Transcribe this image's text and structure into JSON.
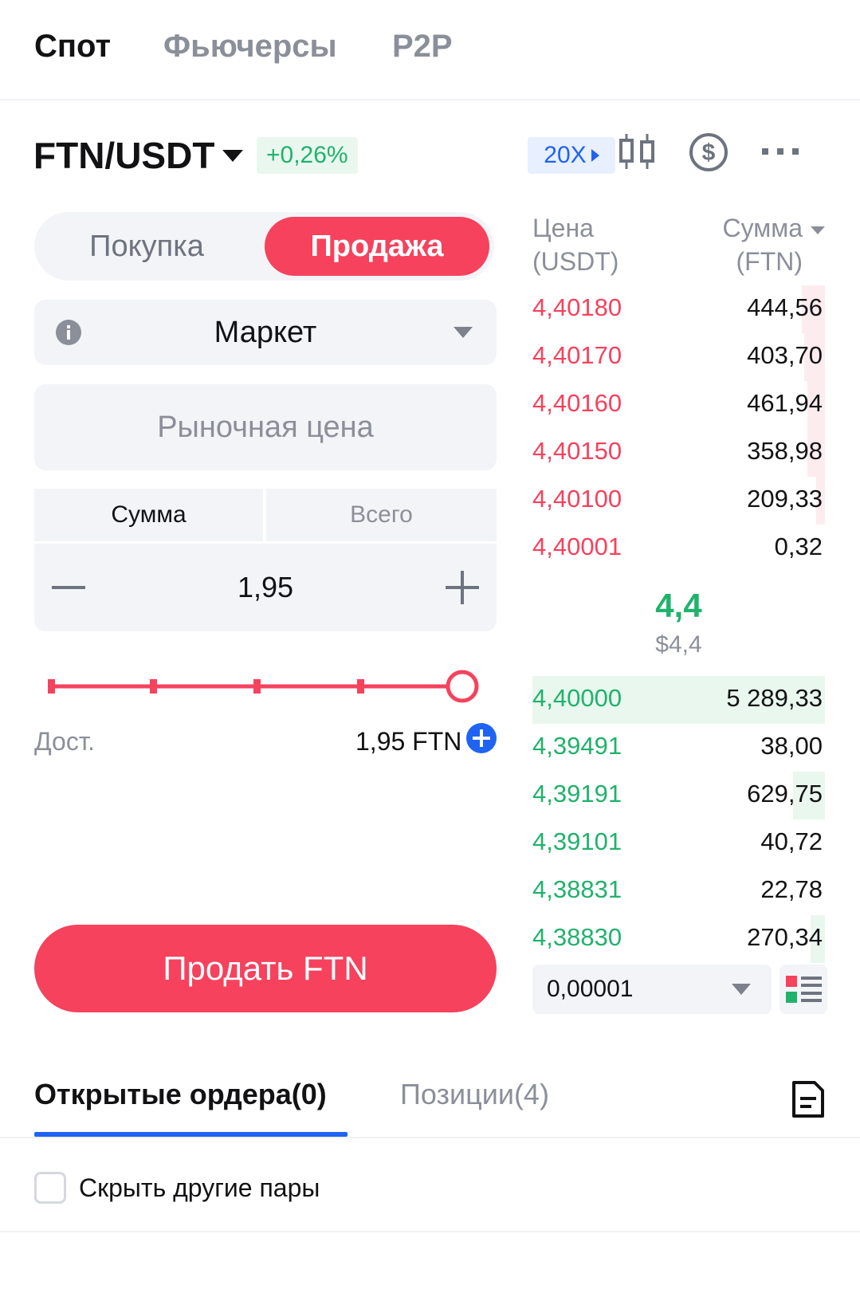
{
  "top_tabs": [
    {
      "label": "Спот",
      "active": true
    },
    {
      "label": "Фьючерсы",
      "active": false
    },
    {
      "label": "P2P",
      "active": false
    }
  ],
  "header": {
    "pair": "FTN/USDT",
    "change": "+0,26%",
    "leverage": "20X",
    "icons": [
      "candlestick-chart-icon",
      "dollar-circle-icon",
      "more-icon"
    ]
  },
  "trade_form": {
    "buy_label": "Покупка",
    "sell_label": "Продажа",
    "order_type": "Маркет",
    "market_price_placeholder": "Рыночная цена",
    "segment_sum": "Сумма",
    "segment_total": "Всего",
    "amount": "1,95",
    "slider_percent": 100,
    "available_label": "Дост.",
    "available_value": "1,95 FTN",
    "submit_label": "Продать FTN"
  },
  "order_book": {
    "price_header_1": "Цена",
    "price_header_2": "(USDT)",
    "qty_header_1": "Сумма",
    "qty_header_2": "(FTN)",
    "asks": [
      {
        "price": "4,40180",
        "qty": "444,56",
        "depth": 0.08
      },
      {
        "price": "4,40170",
        "qty": "403,70",
        "depth": 0.07
      },
      {
        "price": "4,40160",
        "qty": "461,94",
        "depth": 0.06
      },
      {
        "price": "4,40150",
        "qty": "358,98",
        "depth": 0.06
      },
      {
        "price": "4,40100",
        "qty": "209,33",
        "depth": 0.03
      },
      {
        "price": "4,40001",
        "qty": "0,32",
        "depth": 0
      }
    ],
    "last_price": "4,4",
    "last_price_fiat": "$4,4",
    "bids": [
      {
        "price": "4,40000",
        "qty": "5 289,33",
        "depth": 1.0
      },
      {
        "price": "4,39491",
        "qty": "38,00",
        "depth": 0
      },
      {
        "price": "4,39191",
        "qty": "629,75",
        "depth": 0.11
      },
      {
        "price": "4,39101",
        "qty": "40,72",
        "depth": 0
      },
      {
        "price": "4,38831",
        "qty": "22,78",
        "depth": 0
      },
      {
        "price": "4,38830",
        "qty": "270,34",
        "depth": 0.05
      }
    ],
    "tick_size": "0,00001"
  },
  "bottom_tabs": {
    "open_orders": "Открытые ордера(0)",
    "positions": "Позиции(4)"
  },
  "hide_other_pairs": {
    "label": "Скрыть другие пары",
    "checked": false
  },
  "colors": {
    "sell": "#f6425d",
    "buy": "#20b26c",
    "accent": "#1f63f3"
  }
}
